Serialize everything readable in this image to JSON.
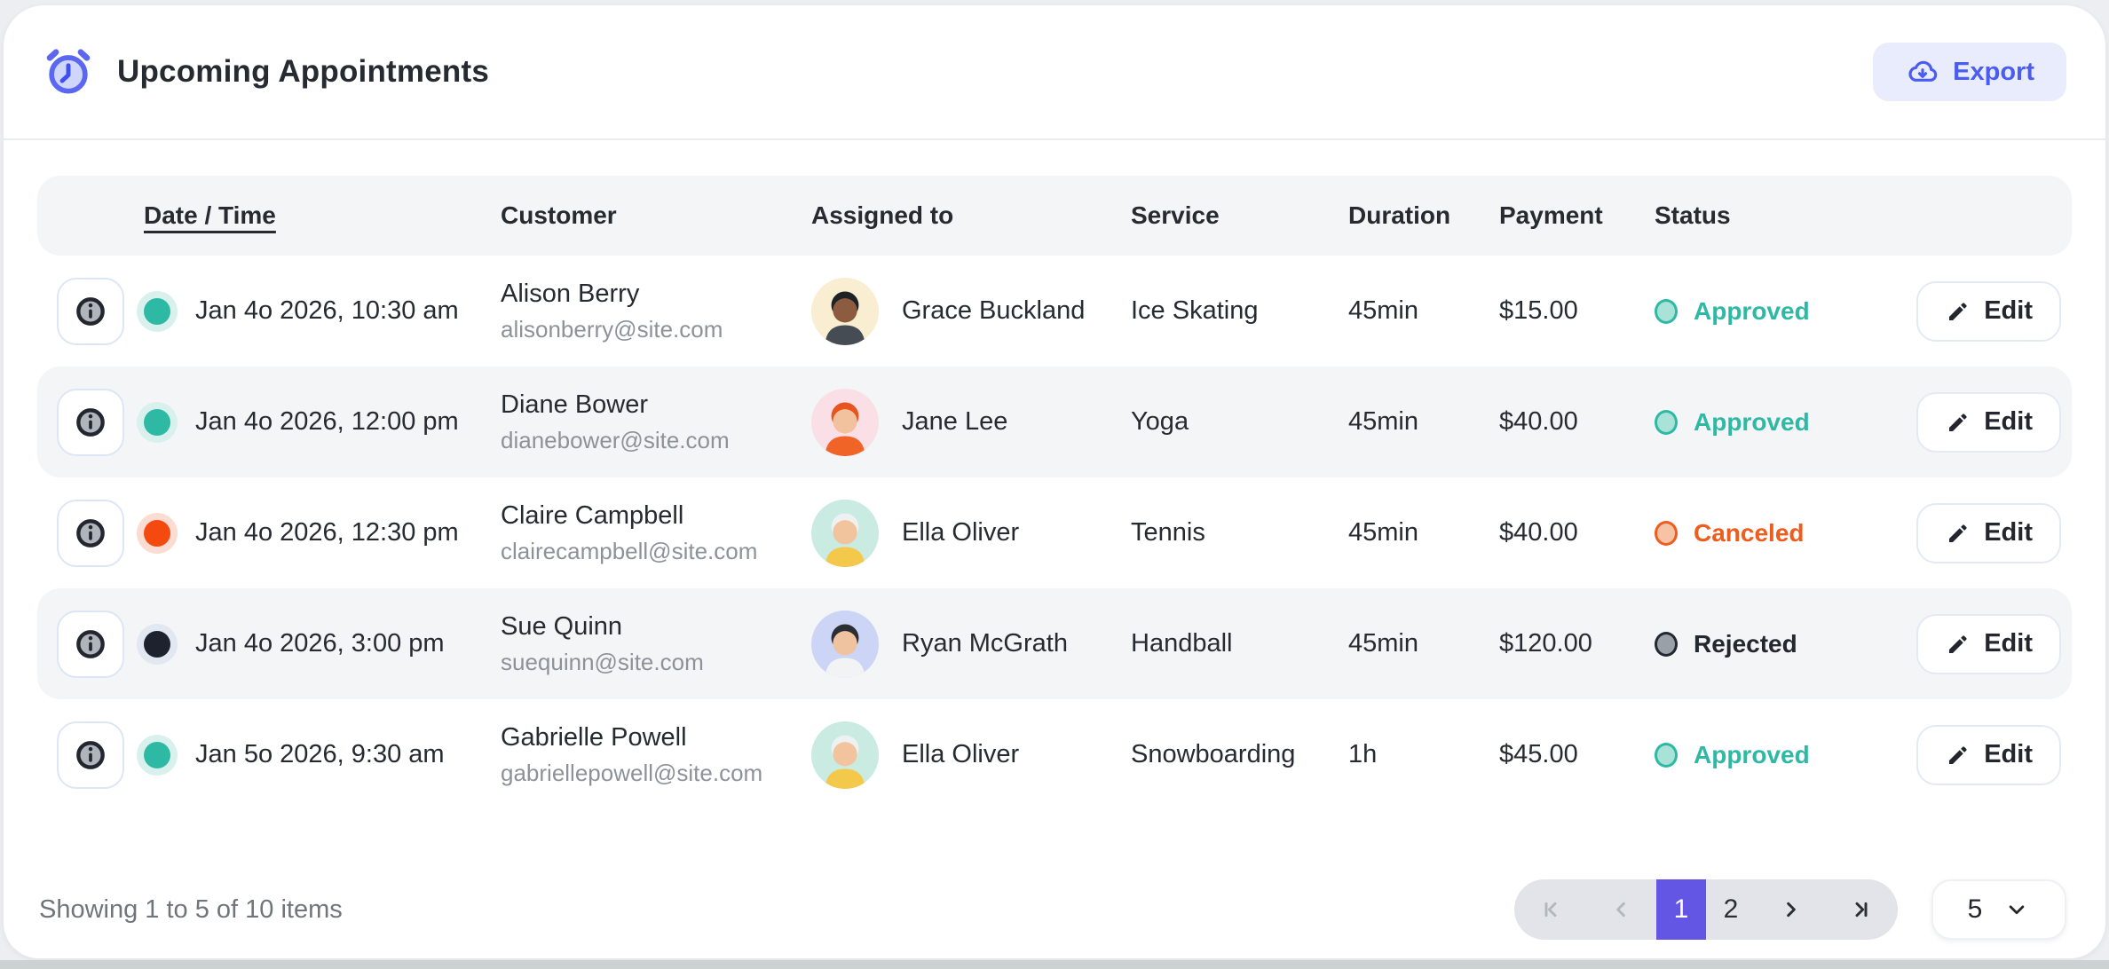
{
  "page": {
    "title": "Upcoming Appointments",
    "export_label": "Export"
  },
  "colors": {
    "accent": "#5b67f1",
    "export_bg": "#e8ecfd",
    "export_text": "#4b5cf0",
    "active_page": "#6356e4",
    "approved": "#2db9a4",
    "canceled": "#ef5d1e",
    "rejected": "#23272f"
  },
  "table": {
    "headers": {
      "date": "Date / Time",
      "customer": "Customer",
      "assigned": "Assigned to",
      "service": "Service",
      "duration": "Duration",
      "payment": "Payment",
      "status": "Status"
    },
    "rows": [
      {
        "datetime": "Jan 4o 2026, 10:30 am",
        "dot_color": "#2db9a4",
        "dot_halo": "#d9f1ec",
        "customer_name": "Alison Berry",
        "customer_email": "alisonberry@site.com",
        "assignee": "Grace Buckland",
        "avatar": {
          "bg": "#f9eed2",
          "skin": "#8d5b3f",
          "hair": "#1e2126",
          "shirt": "#464c54"
        },
        "service": "Ice Skating",
        "duration": "45min",
        "payment": "$15.00",
        "status": "Approved",
        "status_color": "#2db9a4",
        "status_fill": "#a9e2d6",
        "edit_label": "Edit"
      },
      {
        "datetime": "Jan 4o 2026, 12:00 pm",
        "dot_color": "#2db9a4",
        "dot_halo": "#d9f1ec",
        "customer_name": "Diane Bower",
        "customer_email": "dianebower@site.com",
        "assignee": "Jane Lee",
        "avatar": {
          "bg": "#fbdfe6",
          "skin": "#f2c19e",
          "hair": "#e8541d",
          "shirt": "#f06428"
        },
        "service": "Yoga",
        "duration": "45min",
        "payment": "$40.00",
        "status": "Approved",
        "status_color": "#2db9a4",
        "status_fill": "#a9e2d6",
        "edit_label": "Edit"
      },
      {
        "datetime": "Jan 4o 2026, 12:30 pm",
        "dot_color": "#f4490f",
        "dot_halo": "#fbdcd2",
        "customer_name": "Claire Campbell",
        "customer_email": "clairecampbell@site.com",
        "assignee": "Ella Oliver",
        "avatar": {
          "bg": "#c9ebe2",
          "skin": "#f2c49e",
          "hair": "#eef1f2",
          "shirt": "#f4c84a"
        },
        "service": "Tennis",
        "duration": "45min",
        "payment": "$40.00",
        "status": "Canceled",
        "status_color": "#ef5d1e",
        "status_fill": "#f7c3a6",
        "edit_label": "Edit"
      },
      {
        "datetime": "Jan 4o 2026, 3:00 pm",
        "dot_color": "#1d222e",
        "dot_halo": "#e2e8f2",
        "customer_name": "Sue Quinn",
        "customer_email": "suequinn@site.com",
        "assignee": "Ryan McGrath",
        "avatar": {
          "bg": "#ccd5f6",
          "skin": "#efc3a0",
          "hair": "#2b2e33",
          "shirt": "#f2f3f5"
        },
        "service": "Handball",
        "duration": "45min",
        "payment": "$120.00",
        "status": "Rejected",
        "status_color": "#23272f",
        "status_fill": "#9aa0a8",
        "edit_label": "Edit"
      },
      {
        "datetime": "Jan 5o 2026, 9:30 am",
        "dot_color": "#2db9a4",
        "dot_halo": "#d9f1ec",
        "customer_name": "Gabrielle Powell",
        "customer_email": "gabriellepowell@site.com",
        "assignee": "Ella Oliver",
        "avatar": {
          "bg": "#c9ebe2",
          "skin": "#f2c49e",
          "hair": "#eef1f2",
          "shirt": "#f4c84a"
        },
        "service": "Snowboarding",
        "duration": "1h",
        "payment": "$45.00",
        "status": "Approved",
        "status_color": "#2db9a4",
        "status_fill": "#a9e2d6",
        "edit_label": "Edit"
      }
    ]
  },
  "footer": {
    "summary": "Showing 1 to 5 of 10 items",
    "pagination": {
      "pages": [
        "1",
        "2"
      ],
      "active_page": "1",
      "page_size": "5"
    }
  }
}
